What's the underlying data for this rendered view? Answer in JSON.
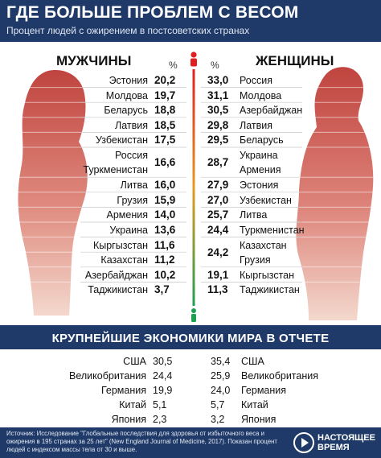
{
  "header": {
    "title": "ГДЕ БОЛЬШЕ ПРОБЛЕМ С ВЕСОМ",
    "subtitle": "Процент людей с ожирением в постсоветских странах"
  },
  "columns": {
    "men": "МУЖЧИНЫ",
    "women": "ЖЕНЩИНЫ",
    "pct": "%"
  },
  "economies_title": "КРУПНЕЙШИЕ ЭКОНОМИКИ МИРА В ОТЧЕТЕ",
  "footer": {
    "source": "Источник: Исследование \"Глобальные последствия для здоровья от избыточного веса и ожирения в 195 странах за 25 лет\" (New England Journal of Medicine, 2017). Показан процент людей с индексом массы тела от 30 и выше.",
    "logo": [
      "НАСТОЯЩЕЕ",
      "ВРЕМЯ"
    ]
  },
  "colors": {
    "navy": "#1f3a68",
    "body_dark": "#c0443f",
    "body_light": "#f2cfc3",
    "red": "#e02020",
    "green": "#1ea050"
  },
  "chart_data": [
    {
      "type": "table",
      "title": "ГДЕ БОЛЬШЕ ПРОБЛЕМ С ВЕСОМ",
      "subtitle": "Процент людей с ожирением в постсоветских странах",
      "men": [
        {
          "country": "Эстония",
          "value": "20,2"
        },
        {
          "country": "Молдова",
          "value": "19,7"
        },
        {
          "country": "Беларусь",
          "value": "18,8"
        },
        {
          "country": "Латвия",
          "value": "18,5"
        },
        {
          "country": "Узбекистан",
          "value": "17,5"
        },
        {
          "country": "Россия\nТуркменистан",
          "value": "16,6"
        },
        {
          "country": "Литва",
          "value": "16,0"
        },
        {
          "country": "Грузия",
          "value": "15,9"
        },
        {
          "country": "Армения",
          "value": "14,0"
        },
        {
          "country": "Украина",
          "value": "13,6"
        },
        {
          "country": "Кыргызстан",
          "value": "11,6"
        },
        {
          "country": "Казахстан",
          "value": "11,2"
        },
        {
          "country": "Азербайджан",
          "value": "10,2"
        },
        {
          "country": "Таджикистан",
          "value": "3,7"
        }
      ],
      "women": [
        {
          "country": "Россия",
          "value": "33,0"
        },
        {
          "country": "Молдова",
          "value": "31,1"
        },
        {
          "country": "Азербайджан",
          "value": "30,5"
        },
        {
          "country": "Латвия",
          "value": "29,8"
        },
        {
          "country": "Беларусь",
          "value": "29,5"
        },
        {
          "country": "Украина\nАрмения",
          "value": "28,7"
        },
        {
          "country": "Эстония",
          "value": "27,9"
        },
        {
          "country": "Узбекистан",
          "value": "27,0"
        },
        {
          "country": "Литва",
          "value": "25,7"
        },
        {
          "country": "Туркменистан",
          "value": "24,4"
        },
        {
          "country": "Казахстан\nГрузия",
          "value": "24,2"
        },
        {
          "country": "Кыргызстан",
          "value": "19,1"
        },
        {
          "country": "Таджикистан",
          "value": "11,3"
        }
      ]
    },
    {
      "type": "table",
      "title": "КРУПНЕЙШИЕ ЭКОНОМИКИ МИРА В ОТЧЕТЕ",
      "men": [
        {
          "country": "США",
          "value": "30,5"
        },
        {
          "country": "Великобритания",
          "value": "24,4"
        },
        {
          "country": "Германия",
          "value": "19,9"
        },
        {
          "country": "Китай",
          "value": "5,1"
        },
        {
          "country": "Япония",
          "value": "2,3"
        }
      ],
      "women": [
        {
          "country": "США",
          "value": "35,4"
        },
        {
          "country": "Великобритания",
          "value": "25,9"
        },
        {
          "country": "Германия",
          "value": "24,0"
        },
        {
          "country": "Китай",
          "value": "5,7"
        },
        {
          "country": "Япония",
          "value": "3,2"
        }
      ]
    }
  ]
}
